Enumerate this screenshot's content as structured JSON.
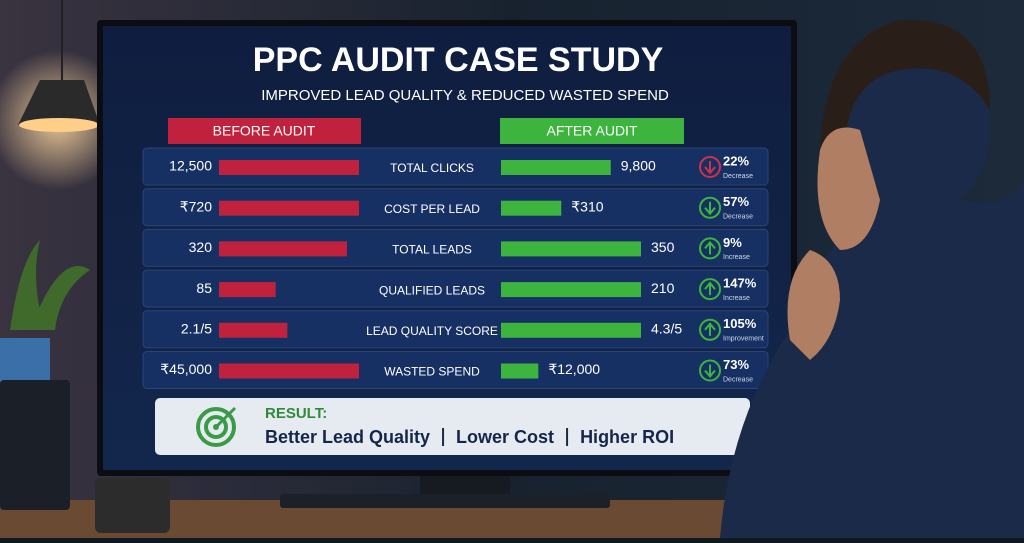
{
  "chart_data": {
    "type": "paired-bar",
    "title": "PPC AUDIT CASE STUDY",
    "subtitle": "IMPROVED LEAD QUALITY & REDUCED WASTED SPEND",
    "categories": [
      "TOTAL CLICKS",
      "COST PER LEAD",
      "TOTAL LEADS",
      "QUALIFIED LEADS",
      "LEAD QUALITY SCORE",
      "WASTED SPEND"
    ],
    "series": [
      {
        "name": "BEFORE AUDIT",
        "color": "#c0223d",
        "values": [
          12500,
          720,
          320,
          85,
          2.1,
          45000
        ],
        "value_labels": [
          "12,500",
          "₹720",
          "320",
          "85",
          "2.1/5",
          "₹45,000"
        ]
      },
      {
        "name": "AFTER AUDIT",
        "color": "#3db43d",
        "values": [
          9800,
          310,
          350,
          210,
          4.3,
          12000
        ],
        "value_labels": [
          "9,800",
          "₹310",
          "350",
          "210",
          "4.3/5",
          "₹12,000"
        ]
      }
    ],
    "change_labels": [
      "22%",
      "57%",
      "9%",
      "147%",
      "105%",
      "73%"
    ],
    "change_notes": [
      "Decrease",
      "Decrease",
      "Increase",
      "Increase",
      "Improvement",
      "Decrease"
    ],
    "change_directions": [
      "down",
      "down",
      "up",
      "up",
      "up",
      "down"
    ],
    "change_colors": [
      "#d0304a",
      "#3db43d",
      "#3db43d",
      "#3db43d",
      "#3db43d",
      "#3db43d"
    ],
    "result": {
      "heading": "RESULT:",
      "items": [
        "Better Lead Quality",
        "Lower Cost",
        "Higher ROI"
      ]
    }
  }
}
